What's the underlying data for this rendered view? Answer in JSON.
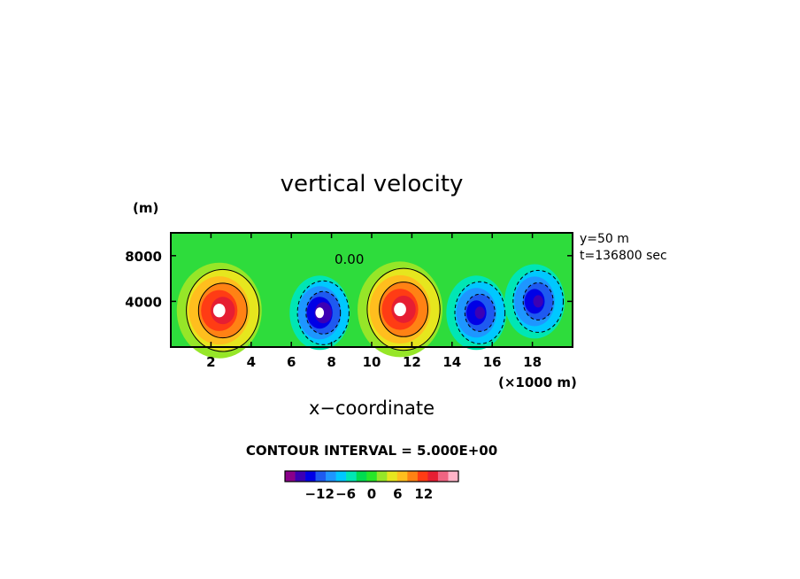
{
  "chart_data": {
    "type": "heatmap",
    "title": "vertical velocity",
    "xlabel": "x−coordinate",
    "x_unit_label": "(×1000 m)",
    "y_unit_label": "(m)",
    "xlim": [
      0,
      20
    ],
    "ylim": [
      0,
      10000
    ],
    "x_ticks": [
      2,
      4,
      6,
      8,
      10,
      12,
      14,
      16,
      18
    ],
    "x_tick_labels": [
      "2",
      "4",
      "6",
      "8",
      "10",
      "12",
      "14",
      "16",
      "18"
    ],
    "y_ticks": [
      4000,
      8000
    ],
    "y_tick_labels": [
      "4000",
      "8000"
    ],
    "annotations": [
      "y=50 m",
      "t=136800 sec"
    ],
    "contour_label": "0.00",
    "contour_interval_text": "CONTOUR INTERVAL = 5.000E+00",
    "colorbar": {
      "ticks": [
        -12,
        -6,
        0,
        6,
        12
      ],
      "tick_labels": [
        "−12",
        "−6",
        "0",
        "6",
        "12"
      ],
      "colors": [
        "#8a008a",
        "#3c00b4",
        "#0000e6",
        "#1e5af0",
        "#1e96ff",
        "#00c8ff",
        "#00e6b4",
        "#00dc50",
        "#28e628",
        "#96e628",
        "#e6e61e",
        "#ffbe1e",
        "#ff8214",
        "#ff3c14",
        "#e61e32",
        "#f06482",
        "#ffb4c8"
      ]
    },
    "features": [
      {
        "kind": "updraft",
        "x": 2.5,
        "y": 3200,
        "peak": 20
      },
      {
        "kind": "downdraft",
        "x": 7.5,
        "y": 3000,
        "peak": -18
      },
      {
        "kind": "updraft",
        "x": 11.5,
        "y": 3300,
        "peak": 20
      },
      {
        "kind": "downdraft",
        "x": 15.3,
        "y": 3000,
        "peak": -14
      },
      {
        "kind": "downdraft",
        "x": 18.2,
        "y": 4000,
        "peak": -16
      }
    ],
    "grid": false
  }
}
